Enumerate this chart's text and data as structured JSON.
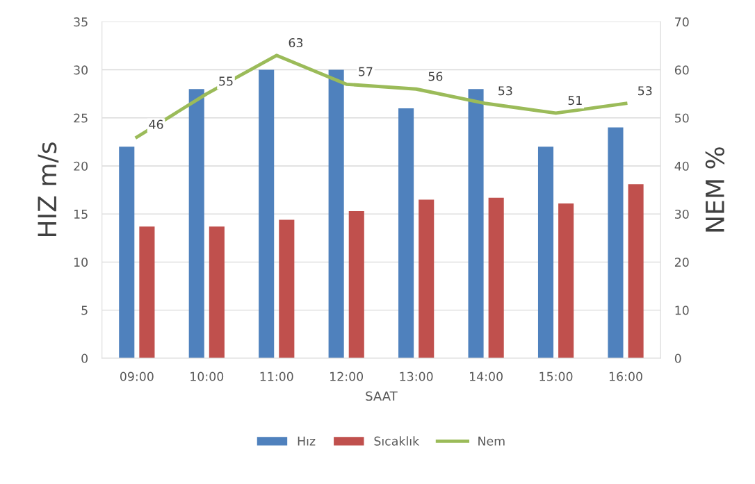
{
  "chart_data": {
    "type": "bar",
    "xlabel": "SAAT",
    "ylabel": "HIZ m/s",
    "y2label": "NEM %",
    "categories": [
      "09:00",
      "10:00",
      "11:00",
      "12:00",
      "13:00",
      "14:00",
      "15:00",
      "16:00"
    ],
    "series": [
      {
        "name": "Hız",
        "color": "#4f81bd",
        "values": [
          22,
          28,
          30,
          30,
          26,
          28,
          22,
          24
        ]
      },
      {
        "name": "Sıcaklık",
        "color": "#c0504d",
        "values": [
          13.7,
          13.7,
          14.4,
          15.3,
          16.5,
          16.7,
          16.1,
          18.1
        ]
      },
      {
        "name": "Nem",
        "type": "line",
        "axis": "y2",
        "color": "#9bbb59",
        "values": [
          46,
          55,
          63,
          57,
          56,
          53,
          51,
          53
        ],
        "value_labels": [
          "46",
          "55",
          "63",
          "57",
          "56",
          "53",
          "51",
          "53"
        ]
      }
    ],
    "ylim": [
      0,
      35
    ],
    "yticks": [
      0,
      5,
      10,
      15,
      20,
      25,
      30,
      35
    ],
    "y2lim": [
      0,
      70
    ],
    "y2ticks": [
      0,
      10,
      20,
      30,
      40,
      50,
      60,
      70
    ],
    "grid": "y",
    "legend": "bottom",
    "marker": "none",
    "line_style": "solid"
  }
}
